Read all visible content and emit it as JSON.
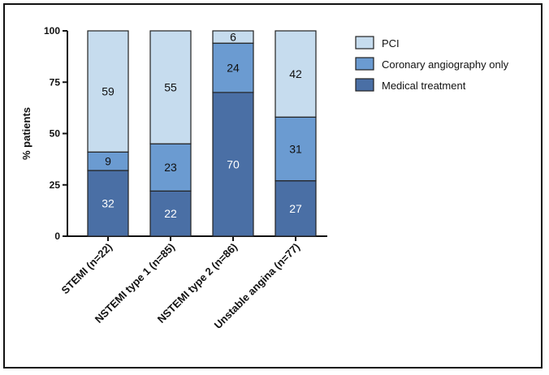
{
  "chart_data": {
    "type": "bar",
    "stacked": true,
    "title": "",
    "xlabel": "",
    "ylabel": "% patients",
    "ylim": [
      0,
      100
    ],
    "yticks": [
      0,
      25,
      50,
      75,
      100
    ],
    "grid": false,
    "legend_position": "top-right",
    "categories": [
      "STEMI (n=22)",
      "NSTEMI type 1 (n=85)",
      "NSTEMI type 2 (n=86)",
      "Unstable angina (n=77)"
    ],
    "series": [
      {
        "name": "Medical treatment",
        "values": [
          32,
          22,
          70,
          27
        ],
        "color": "#4a6fa5",
        "label_color": "#ffffff"
      },
      {
        "name": "Coronary angiography only",
        "values": [
          9,
          23,
          24,
          31
        ],
        "color": "#6b9bd1",
        "label_color": "#111111"
      },
      {
        "name": "PCI",
        "values": [
          59,
          55,
          6,
          42
        ],
        "color": "#c6dcee",
        "label_color": "#111111"
      }
    ],
    "legend_order": [
      "PCI",
      "Coronary angiography only",
      "Medical treatment"
    ]
  }
}
